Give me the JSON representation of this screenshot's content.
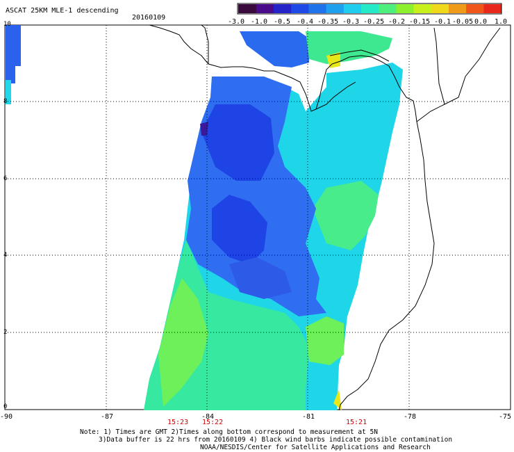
{
  "title": "ASCAT 25KM MLE-1 descending",
  "date": "20160109",
  "colorbar": {
    "ticks": [
      "-3.0",
      "-1.0",
      "-0.5",
      "-0.4",
      "-0.35",
      "-0.3",
      "-0.25",
      "-0.2",
      "-0.15",
      "-0.1",
      "-0.05",
      "0.0",
      "1.0"
    ],
    "colors": [
      "#3a0a3c",
      "#4b0a8a",
      "#2424c8",
      "#1f49e6",
      "#1f73ea",
      "#1ea0ef",
      "#1fcdee",
      "#25eac8",
      "#4df07c",
      "#8cf02c",
      "#c8f01a",
      "#f0d81a",
      "#f09a1a",
      "#f0551a",
      "#e8281a"
    ]
  },
  "axes": {
    "x_ticks": [
      "-90",
      "-87",
      "-84",
      "-81",
      "-78",
      "-75"
    ],
    "y_ticks": [
      "10",
      "8",
      "6",
      "4",
      "2",
      "0"
    ]
  },
  "pass_times": [
    "15:23",
    "15:22",
    "15:21"
  ],
  "notes": [
    "Note: 1) Times are GMT 2)Times along bottom correspond to measurement at 5N",
    "3)Data buffer is 22 hrs from 20160109 4) Black wind barbs indicate possible contamination",
    "NOAA/NESDIS/Center for Satellite Applications and Research"
  ]
}
